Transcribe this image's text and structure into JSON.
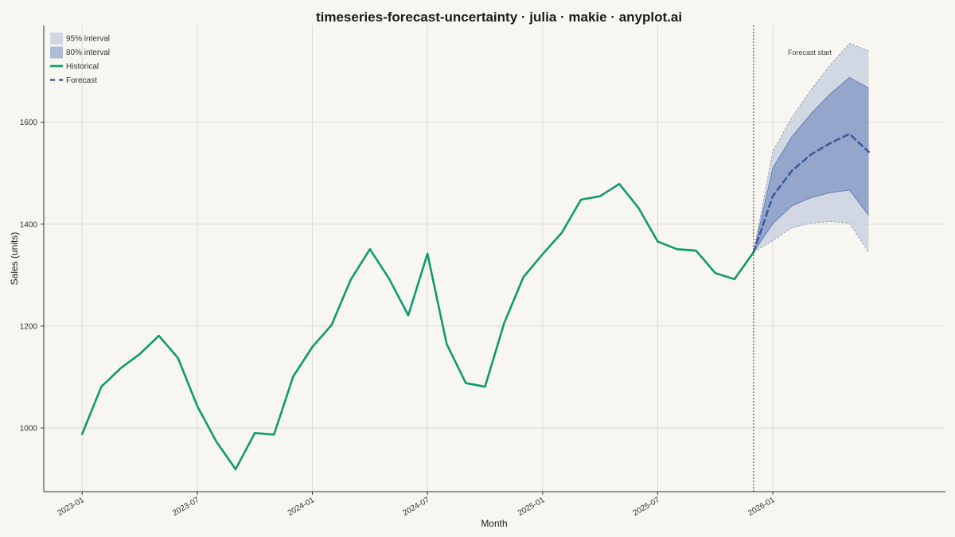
{
  "chart_data": {
    "type": "line",
    "title": "timeseries-forecast-uncertainty · julia · makie · anyplot.ai",
    "xlabel": "Month",
    "ylabel": "Sales (units)",
    "ylim": [
      875,
      1790
    ],
    "yticks": [
      1000,
      1200,
      1400,
      1600
    ],
    "xticks": [
      {
        "date": "2023-01",
        "label": "2023-01"
      },
      {
        "date": "2023-07",
        "label": "2023-07"
      },
      {
        "date": "2024-01",
        "label": "2024-01"
      },
      {
        "date": "2024-07",
        "label": "2024-07"
      },
      {
        "date": "2025-01",
        "label": "2025-01"
      },
      {
        "date": "2025-07",
        "label": "2025-07"
      },
      {
        "date": "2026-01",
        "label": "2026-01"
      }
    ],
    "xlim": [
      "2022-11",
      "2026-10"
    ],
    "grid": true,
    "legend_position": "top-left",
    "colors": {
      "historical": "#0E9B6E",
      "forecast": "#3B5BA0",
      "band80": "#7F96C4",
      "band95": "#C5CEDE",
      "grid": "#DCDAD4",
      "background": "#F8F6F1"
    },
    "legend": [
      {
        "key": "band95",
        "label": "95% interval"
      },
      {
        "key": "band80",
        "label": "80% interval"
      },
      {
        "key": "historical",
        "label": "Historical"
      },
      {
        "key": "forecast",
        "label": "Forecast"
      }
    ],
    "forecast_start": {
      "date": "2025-12",
      "label": "Forecast start"
    },
    "historical": {
      "name": "Historical",
      "x": [
        "2023-01",
        "2023-02",
        "2023-03",
        "2023-04",
        "2023-05",
        "2023-06",
        "2023-07",
        "2023-08",
        "2023-09",
        "2023-10",
        "2023-11",
        "2023-12",
        "2024-01",
        "2024-02",
        "2024-03",
        "2024-04",
        "2024-05",
        "2024-06",
        "2024-07",
        "2024-08",
        "2024-09",
        "2024-10",
        "2024-11",
        "2024-12",
        "2025-01",
        "2025-02",
        "2025-03",
        "2025-04",
        "2025-05",
        "2025-06",
        "2025-07",
        "2025-08",
        "2025-09",
        "2025-10",
        "2025-11",
        "2025-12"
      ],
      "y": [
        988,
        1081,
        1117,
        1145,
        1181,
        1137,
        1043,
        973,
        919,
        990,
        987,
        1101,
        1159,
        1202,
        1291,
        1351,
        1293,
        1221,
        1342,
        1165,
        1088,
        1081,
        1206,
        1296,
        1341,
        1383,
        1448,
        1455,
        1479,
        1432,
        1366,
        1351,
        1348,
        1304,
        1292,
        1345
      ]
    },
    "forecast": {
      "name": "Forecast",
      "x": [
        "2025-12",
        "2026-01",
        "2026-02",
        "2026-03",
        "2026-04",
        "2026-05",
        "2026-06"
      ],
      "y": [
        1345,
        1455,
        1505,
        1537,
        1559,
        1577,
        1542
      ],
      "lower80": [
        1345,
        1401,
        1436,
        1452,
        1462,
        1467,
        1417
      ],
      "upper80": [
        1345,
        1510,
        1572,
        1617,
        1656,
        1688,
        1667
      ],
      "lower95": [
        1345,
        1368,
        1393,
        1402,
        1405,
        1402,
        1345
      ],
      "upper95": [
        1345,
        1543,
        1610,
        1664,
        1713,
        1755,
        1740
      ]
    }
  }
}
